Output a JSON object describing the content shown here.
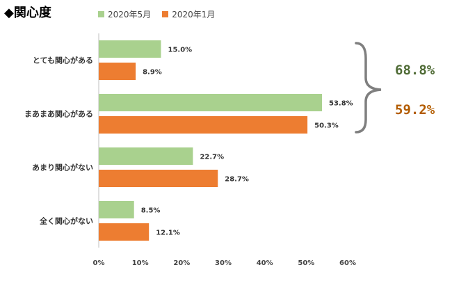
{
  "title": "◆関心度",
  "chart_data": {
    "type": "bar",
    "orientation": "horizontal",
    "categories": [
      "とても関心がある",
      "まあまあ関心がある",
      "あまり関心がない",
      "全く関心がない"
    ],
    "series": [
      {
        "name": "2020年5月",
        "color": "#a9d18e",
        "values": [
          15.0,
          53.8,
          22.7,
          8.5
        ]
      },
      {
        "name": "2020年1月",
        "color": "#ed7d31",
        "values": [
          8.9,
          50.3,
          28.7,
          12.1
        ]
      }
    ],
    "data_labels": [
      [
        "15.0%",
        "53.8%",
        "22.7%",
        "8.5%"
      ],
      [
        "8.9%",
        "50.3%",
        "28.7%",
        "12.1%"
      ]
    ],
    "xlim": [
      0,
      60
    ],
    "xticks": [
      "0%",
      "10%",
      "20%",
      "30%",
      "40%",
      "50%",
      "60%"
    ],
    "legend_position": "top",
    "grid": false,
    "annotation": {
      "bracket": "right of first two categories",
      "values": [
        {
          "text": "68.8%",
          "color": "#4f6b35"
        },
        {
          "text": "59.2%",
          "color": "#b35c00"
        }
      ]
    }
  }
}
